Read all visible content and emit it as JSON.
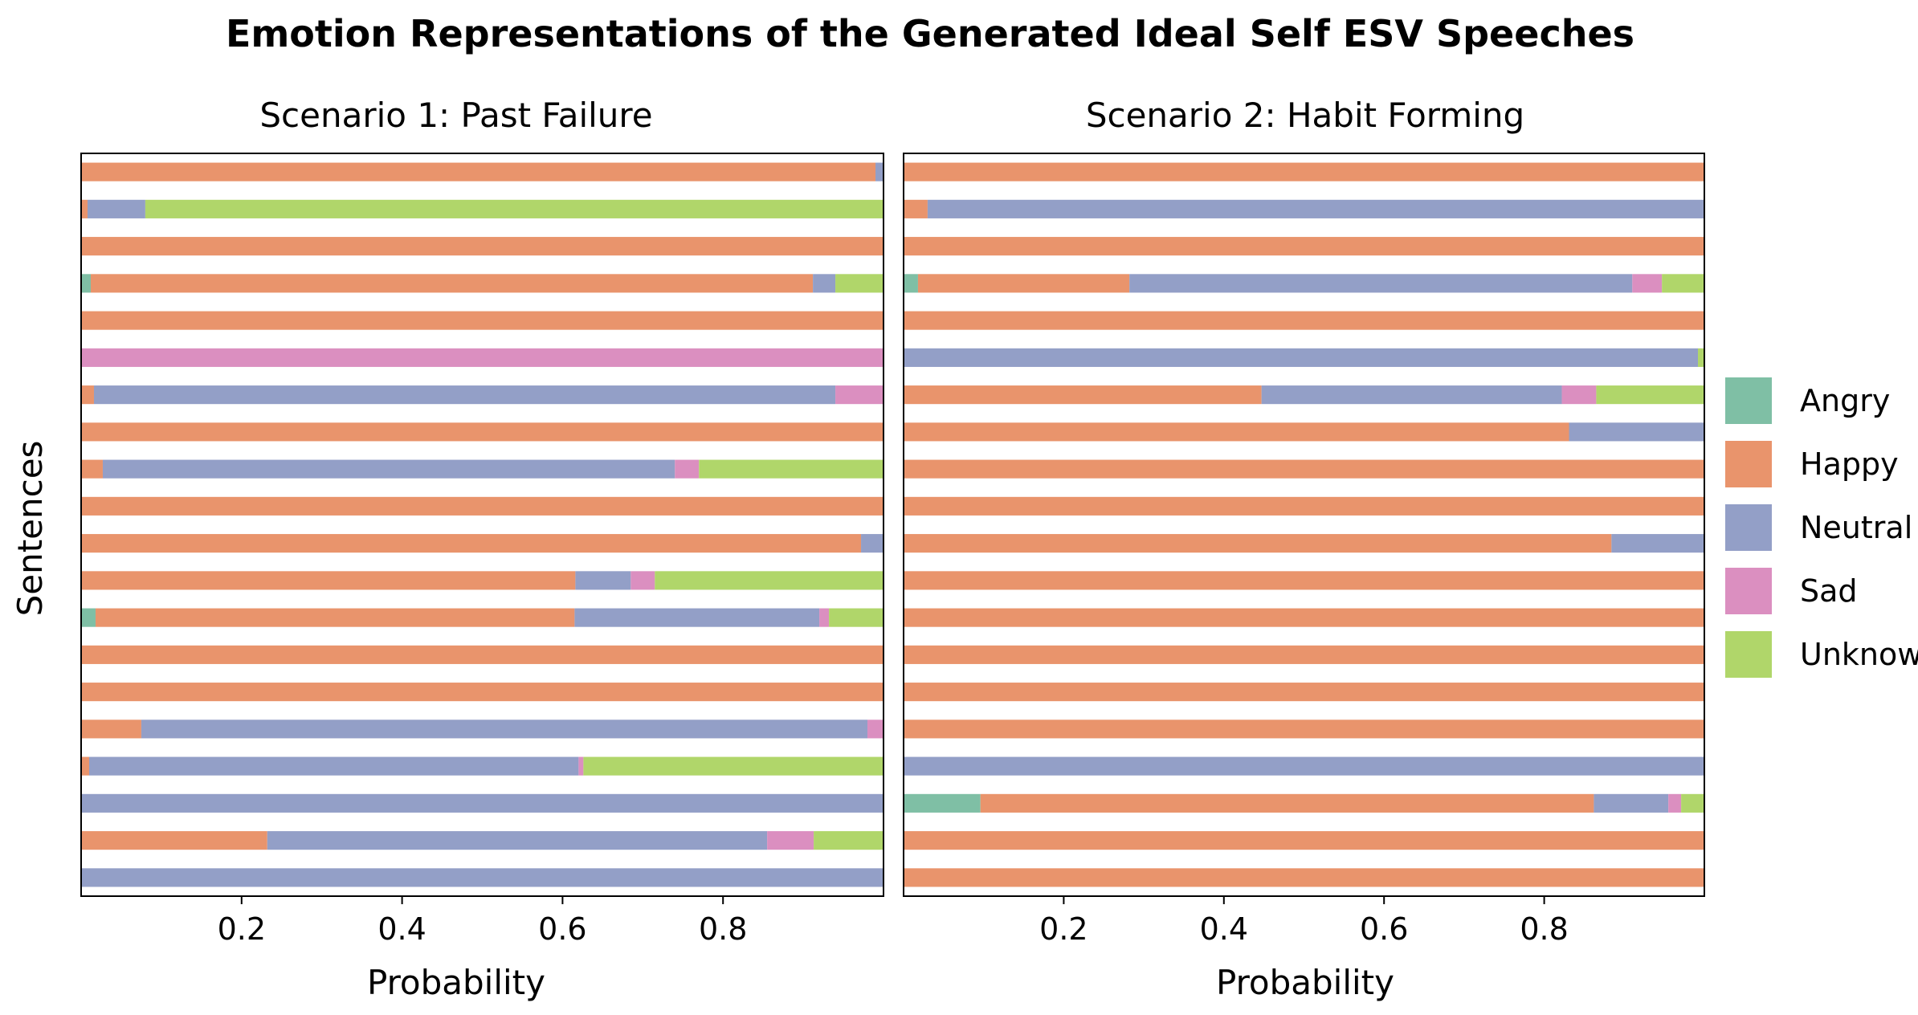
{
  "chart_data": {
    "type": "bar",
    "orientation": "horizontal",
    "stacked": true,
    "title": "Emotion Representations of the Generated Ideal Self ESV Speeches",
    "ylabel": "Sentences",
    "xlim": [
      0,
      1
    ],
    "xticks": [
      "0.2",
      "0.4",
      "0.6",
      "0.8"
    ],
    "colors": {
      "Angry": "#7fbfa5",
      "Happy": "#e9946c",
      "Neutral": "#939fc7",
      "Sad": "#db8fc0",
      "Unknown": "#b0d66a"
    },
    "legend": {
      "position": "right",
      "entries": [
        "Angry",
        "Happy",
        "Neutral",
        "Sad",
        "Unknown"
      ]
    },
    "panels": [
      {
        "title": "Scenario 1: Past Failure",
        "xlabel": "Probability",
        "sentences": [
          {
            "Angry": 0,
            "Happy": 0.99,
            "Neutral": 0.01,
            "Sad": 0,
            "Unknown": 0
          },
          {
            "Angry": 0,
            "Happy": 0.008,
            "Neutral": 0.072,
            "Sad": 0,
            "Unknown": 0.92
          },
          {
            "Angry": 0,
            "Happy": 1.0,
            "Neutral": 0,
            "Sad": 0,
            "Unknown": 0
          },
          {
            "Angry": 0.012,
            "Happy": 0.9,
            "Neutral": 0.028,
            "Sad": 0,
            "Unknown": 0.06
          },
          {
            "Angry": 0,
            "Happy": 1.0,
            "Neutral": 0,
            "Sad": 0,
            "Unknown": 0
          },
          {
            "Angry": 0,
            "Happy": 0,
            "Neutral": 0,
            "Sad": 1.0,
            "Unknown": 0
          },
          {
            "Angry": 0,
            "Happy": 0.016,
            "Neutral": 0.924,
            "Sad": 0.06,
            "Unknown": 0
          },
          {
            "Angry": 0,
            "Happy": 1.0,
            "Neutral": 0,
            "Sad": 0,
            "Unknown": 0
          },
          {
            "Angry": 0,
            "Happy": 0.027,
            "Neutral": 0.713,
            "Sad": 0.03,
            "Unknown": 0.23
          },
          {
            "Angry": 0,
            "Happy": 1.0,
            "Neutral": 0,
            "Sad": 0,
            "Unknown": 0
          },
          {
            "Angry": 0,
            "Happy": 0.972,
            "Neutral": 0.028,
            "Sad": 0,
            "Unknown": 0
          },
          {
            "Angry": 0,
            "Happy": 0.616,
            "Neutral": 0.069,
            "Sad": 0.03,
            "Unknown": 0.285
          },
          {
            "Angry": 0.018,
            "Happy": 0.597,
            "Neutral": 0.305,
            "Sad": 0.012,
            "Unknown": 0.068
          },
          {
            "Angry": 0,
            "Happy": 1.0,
            "Neutral": 0,
            "Sad": 0,
            "Unknown": 0
          },
          {
            "Angry": 0,
            "Happy": 1.0,
            "Neutral": 0,
            "Sad": 0,
            "Unknown": 0
          },
          {
            "Angry": 0,
            "Happy": 0.075,
            "Neutral": 0.905,
            "Sad": 0.02,
            "Unknown": 0
          },
          {
            "Angry": 0,
            "Happy": 0.01,
            "Neutral": 0.61,
            "Sad": 0.006,
            "Unknown": 0.374
          },
          {
            "Angry": 0,
            "Happy": 0,
            "Neutral": 1.0,
            "Sad": 0,
            "Unknown": 0
          },
          {
            "Angry": 0,
            "Happy": 0.232,
            "Neutral": 0.623,
            "Sad": 0.058,
            "Unknown": 0.087
          },
          {
            "Angry": 0,
            "Happy": 0,
            "Neutral": 1.0,
            "Sad": 0,
            "Unknown": 0
          }
        ]
      },
      {
        "title": "Scenario 2: Habit Forming",
        "xlabel": "Probability",
        "sentences": [
          {
            "Angry": 0,
            "Happy": 1.0,
            "Neutral": 0,
            "Sad": 0,
            "Unknown": 0
          },
          {
            "Angry": 0,
            "Happy": 0.03,
            "Neutral": 0.97,
            "Sad": 0,
            "Unknown": 0
          },
          {
            "Angry": 0,
            "Happy": 1.0,
            "Neutral": 0,
            "Sad": 0,
            "Unknown": 0
          },
          {
            "Angry": 0.018,
            "Happy": 0.264,
            "Neutral": 0.628,
            "Sad": 0.037,
            "Unknown": 0.053
          },
          {
            "Angry": 0,
            "Happy": 1.0,
            "Neutral": 0,
            "Sad": 0,
            "Unknown": 0
          },
          {
            "Angry": 0,
            "Happy": 0,
            "Neutral": 0.992,
            "Sad": 0,
            "Unknown": 0.008
          },
          {
            "Angry": 0,
            "Happy": 0.447,
            "Neutral": 0.375,
            "Sad": 0.043,
            "Unknown": 0.135
          },
          {
            "Angry": 0,
            "Happy": 0.831,
            "Neutral": 0.169,
            "Sad": 0,
            "Unknown": 0
          },
          {
            "Angry": 0,
            "Happy": 1.0,
            "Neutral": 0,
            "Sad": 0,
            "Unknown": 0
          },
          {
            "Angry": 0,
            "Happy": 1.0,
            "Neutral": 0,
            "Sad": 0,
            "Unknown": 0
          },
          {
            "Angry": 0,
            "Happy": 0.884,
            "Neutral": 0.116,
            "Sad": 0,
            "Unknown": 0
          },
          {
            "Angry": 0,
            "Happy": 1.0,
            "Neutral": 0,
            "Sad": 0,
            "Unknown": 0
          },
          {
            "Angry": 0,
            "Happy": 1.0,
            "Neutral": 0,
            "Sad": 0,
            "Unknown": 0
          },
          {
            "Angry": 0,
            "Happy": 1.0,
            "Neutral": 0,
            "Sad": 0,
            "Unknown": 0
          },
          {
            "Angry": 0,
            "Happy": 1.0,
            "Neutral": 0,
            "Sad": 0,
            "Unknown": 0
          },
          {
            "Angry": 0,
            "Happy": 1.0,
            "Neutral": 0,
            "Sad": 0,
            "Unknown": 0
          },
          {
            "Angry": 0,
            "Happy": 0,
            "Neutral": 1.0,
            "Sad": 0,
            "Unknown": 0
          },
          {
            "Angry": 0.096,
            "Happy": 0.766,
            "Neutral": 0.093,
            "Sad": 0.016,
            "Unknown": 0.029
          },
          {
            "Angry": 0,
            "Happy": 1.0,
            "Neutral": 0,
            "Sad": 0,
            "Unknown": 0
          },
          {
            "Angry": 0,
            "Happy": 1.0,
            "Neutral": 0,
            "Sad": 0,
            "Unknown": 0
          }
        ]
      }
    ]
  }
}
